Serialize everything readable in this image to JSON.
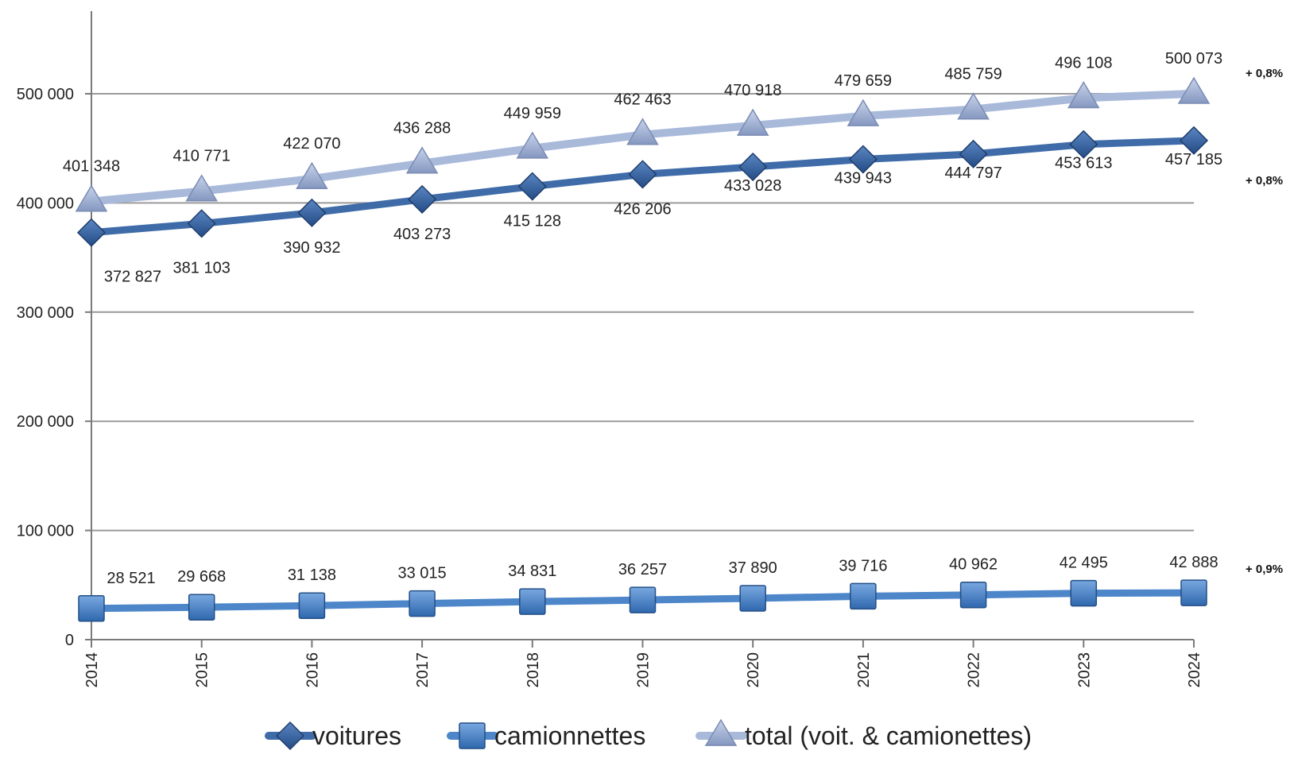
{
  "chart_data": {
    "type": "line",
    "x": [
      "2014",
      "2015",
      "2016",
      "2017",
      "2018",
      "2019",
      "2020",
      "2021",
      "2022",
      "2023",
      "2024"
    ],
    "ylim": [
      0,
      500000
    ],
    "yticks": [
      0,
      100000,
      200000,
      300000,
      400000,
      500000
    ],
    "ytick_labels": [
      "0",
      "100 000",
      "200 000",
      "300 000",
      "400 000",
      "500 000"
    ],
    "grid": "horizontal",
    "legend_position": "bottom",
    "series": [
      {
        "name": "voitures",
        "marker": "diamond",
        "color": "#3F6CA8",
        "values": [
          372827,
          381103,
          390932,
          403273,
          415128,
          426206,
          433028,
          439943,
          444797,
          453613,
          457185
        ],
        "labels": [
          "372 827",
          "381 103",
          "390 932",
          "403 273",
          "415 128",
          "426 206",
          "433 028",
          "439 943",
          "444 797",
          "453 613",
          "457 185"
        ],
        "change_label": "+ 0,8%"
      },
      {
        "name": "camionnettes",
        "marker": "square",
        "color": "#4D86C9",
        "values": [
          28521,
          29668,
          31138,
          33015,
          34831,
          36257,
          37890,
          39716,
          40962,
          42495,
          42888
        ],
        "labels": [
          "28 521",
          "29 668",
          "31 138",
          "33 015",
          "34 831",
          "36 257",
          "37 890",
          "39 716",
          "40 962",
          "42 495",
          "42 888"
        ],
        "change_label": "+ 0,9%"
      },
      {
        "name": "total (voit. & camionettes)",
        "marker": "triangle",
        "color": "#A8B9DA",
        "values": [
          401348,
          410771,
          422070,
          436288,
          449959,
          462463,
          470918,
          479659,
          485759,
          496108,
          500073
        ],
        "labels": [
          "401 348",
          "410 771",
          "422 070",
          "436 288",
          "449 959",
          "462 463",
          "470 918",
          "479 659",
          "485 759",
          "496 108",
          "500 073"
        ],
        "change_label": "+ 0,8%"
      }
    ]
  }
}
